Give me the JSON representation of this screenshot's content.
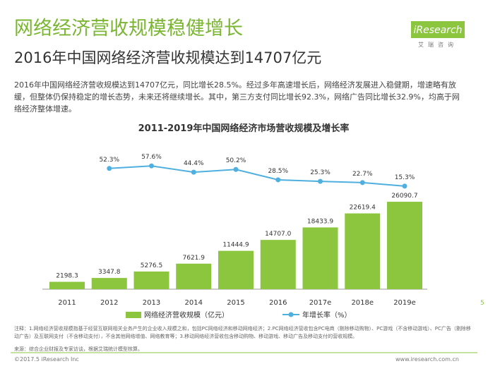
{
  "header": {
    "title": "网络经济营收规模稳健增长",
    "subtitle": "2016年中国网络经济营收规模达到14707亿元",
    "logo": "iResearch",
    "logo_sub": "艾瑞咨询"
  },
  "paragraph": "2016年中国网络经济营收规模达到14707亿元，同比增长28.5%。经过多年高速增长后，网络经济发展进入稳健期，增速略有放缓，但整体仍保持稳定的增长态势，未来还将继续增长。其中，第三方支付同比增长92.3%，网络广告同比增长32.9%，均高于网络经济整体增速。",
  "chart_data": {
    "type": "bar",
    "title": "2011-2019年中国网络经济市场营收规模及增长率",
    "categories": [
      "2011",
      "2012",
      "2013",
      "2014",
      "2015",
      "2016",
      "2017e",
      "2018e",
      "2019e"
    ],
    "series": [
      {
        "name": "网络经济营收规模（亿元）",
        "color": "#8cc63f",
        "values": [
          2198.3,
          3347.8,
          5276.5,
          7621.9,
          11444.9,
          14707.0,
          18433.9,
          22619.4,
          26090.7
        ],
        "value_labels": [
          "2198.3",
          "3347.8",
          "5276.5",
          "7621.9",
          "11444.9",
          "14707.0",
          "18433.9",
          "22619.4",
          "26090.7"
        ]
      },
      {
        "name": "年增长率（%）",
        "color": "#4fb0e0",
        "axis": "y2",
        "type": "line",
        "values": [
          null,
          52.3,
          57.6,
          44.4,
          50.2,
          28.5,
          25.3,
          22.7,
          15.3
        ],
        "value_labels": [
          null,
          "52.3%",
          "57.6%",
          "44.4%",
          "50.2%",
          "28.5%",
          "25.3%",
          "22.7%",
          "15.3%"
        ]
      }
    ],
    "ylim": [
      0,
      40000
    ],
    "y2lim": [
      -200,
      80
    ]
  },
  "notes": "注释：1.网络经济营收规模指基于经营互联网相关业务产生的企业收入规模之和，包括PC网络经济和移动网络经济；2.PC网络经济营收包含PC电商（剔除移动购物）、PC游戏（不含移动游戏）、PC广告（剔除移动广告）及互联网支付（不含移动支付），不含其他网络增值、网络教育等；3.移动网络经济营收包含移动购物、移动游戏、移动广告及移动支付的营收规模。",
  "source": "来源：综合企业财报及专家访谈，根据艾瑞统计模型核算。",
  "footer": {
    "copyright": "©2017.5 iResearch Inc",
    "url": "www.iresearch.com.cn",
    "page": "5"
  }
}
